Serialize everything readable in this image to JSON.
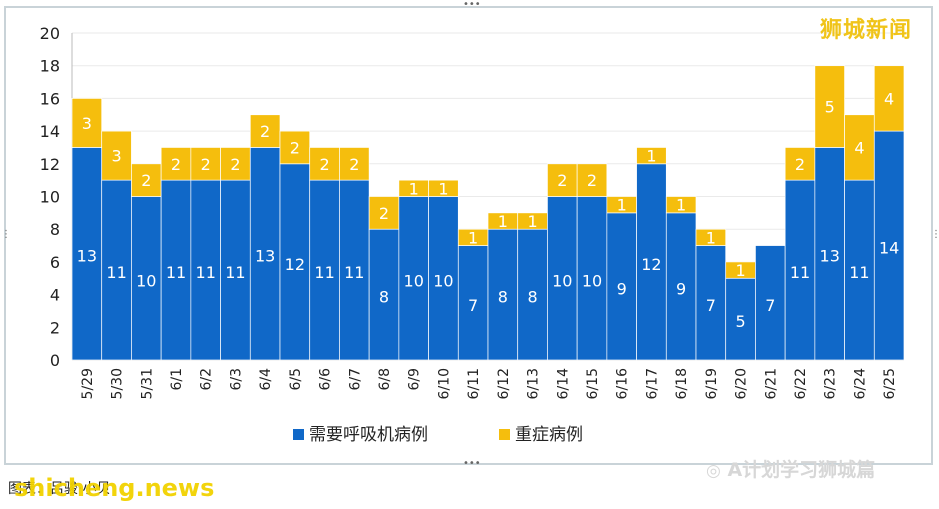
{
  "watermark_brand": "狮城新闻",
  "watermark_site": "shicheng.news",
  "watermark_account": "A计划学习狮城篇",
  "footer_source": "图表：吕骏·小贝",
  "colors": {
    "primary": "#1068c8",
    "secondary": "#f5be0d",
    "brand": "#f0c419"
  },
  "chart_data": {
    "type": "bar",
    "stacked": true,
    "categories": [
      "5/29",
      "5/30",
      "5/31",
      "6/1",
      "6/2",
      "6/3",
      "6/4",
      "6/5",
      "6/6",
      "6/7",
      "6/8",
      "6/9",
      "6/10",
      "6/11",
      "6/12",
      "6/13",
      "6/14",
      "6/15",
      "6/16",
      "6/17",
      "6/18",
      "6/19",
      "6/20",
      "6/21",
      "6/22",
      "6/23",
      "6/24",
      "6/25"
    ],
    "series": [
      {
        "name": "需要呼吸机病例",
        "color": "#1068c8",
        "values": [
          13,
          11,
          10,
          11,
          11,
          11,
          13,
          12,
          11,
          11,
          8,
          10,
          10,
          7,
          8,
          8,
          10,
          10,
          9,
          12,
          9,
          7,
          5,
          7,
          11,
          13,
          11,
          14
        ]
      },
      {
        "name": "重症病例",
        "color": "#f5be0d",
        "values": [
          3,
          3,
          2,
          2,
          2,
          2,
          2,
          2,
          2,
          2,
          2,
          1,
          1,
          1,
          1,
          1,
          2,
          2,
          1,
          1,
          1,
          1,
          1,
          0,
          2,
          5,
          4,
          4
        ]
      }
    ],
    "ylim": [
      0,
      20
    ],
    "yticks": [
      0,
      2,
      4,
      6,
      8,
      10,
      12,
      14,
      16,
      18,
      20
    ],
    "grid": true,
    "legend": "bottom-center",
    "xlabel": "",
    "ylabel": ""
  }
}
